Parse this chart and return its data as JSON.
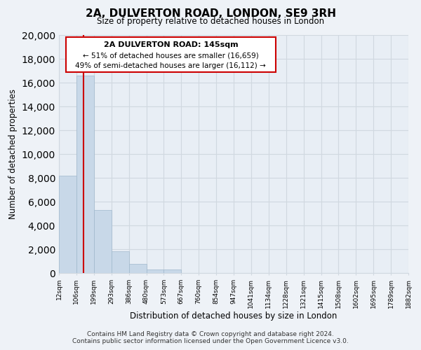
{
  "title": "2A, DULVERTON ROAD, LONDON, SE9 3RH",
  "subtitle": "Size of property relative to detached houses in London",
  "xlabel": "Distribution of detached houses by size in London",
  "ylabel": "Number of detached properties",
  "bar_values": [
    8200,
    16600,
    5300,
    1800,
    750,
    280,
    280,
    0,
    0,
    0,
    0,
    0,
    0,
    0,
    0,
    0,
    0,
    0,
    0,
    0
  ],
  "bin_labels": [
    "12sqm",
    "106sqm",
    "199sqm",
    "293sqm",
    "386sqm",
    "480sqm",
    "573sqm",
    "667sqm",
    "760sqm",
    "854sqm",
    "947sqm",
    "1041sqm",
    "1134sqm",
    "1228sqm",
    "1321sqm",
    "1415sqm",
    "1508sqm",
    "1602sqm",
    "1695sqm",
    "1789sqm",
    "1882sqm"
  ],
  "bar_color": "#c8d8e8",
  "bar_edge_color": "#a0b8cc",
  "grid_color": "#d0d8e0",
  "annotation_border_color": "#cc0000",
  "property_line_label": "2A DULVERTON ROAD: 145sqm",
  "smaller_text": "← 51% of detached houses are smaller (16,659)",
  "larger_text": "49% of semi-detached houses are larger (16,112) →",
  "ylim": [
    0,
    20000
  ],
  "yticks": [
    0,
    2000,
    4000,
    6000,
    8000,
    10000,
    12000,
    14000,
    16000,
    18000,
    20000
  ],
  "footer_line1": "Contains HM Land Registry data © Crown copyright and database right 2024.",
  "footer_line2": "Contains public sector information licensed under the Open Government Licence v3.0.",
  "background_color": "#eef2f7",
  "ax_background_color": "#e8eef5"
}
